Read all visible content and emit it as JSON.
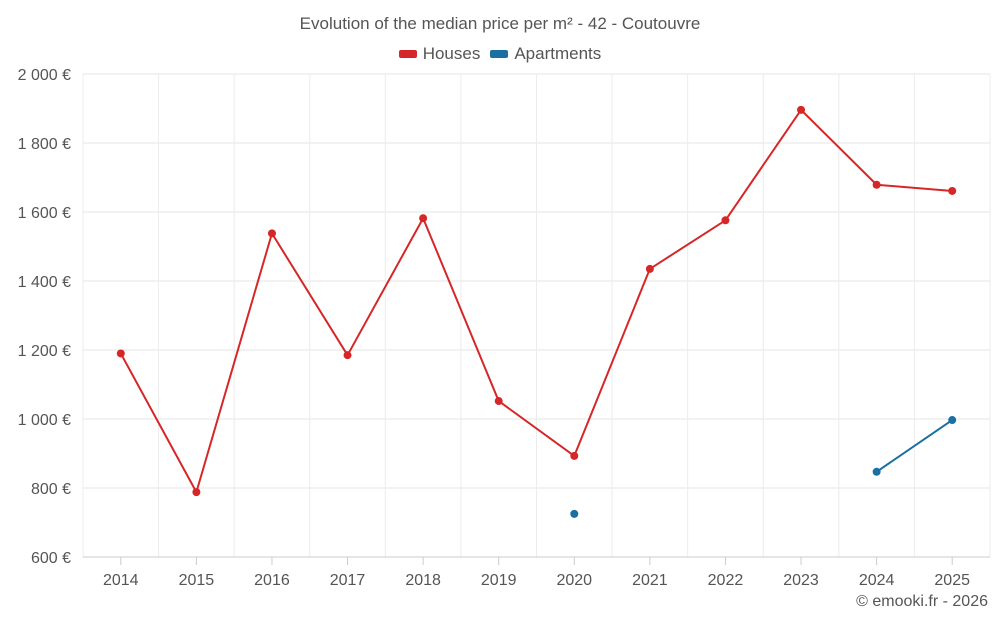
{
  "chart_data": {
    "type": "line",
    "title": "Evolution of the median price per m² - 42 - Coutouvre",
    "categories": [
      "2014",
      "2015",
      "2016",
      "2017",
      "2018",
      "2019",
      "2020",
      "2021",
      "2022",
      "2023",
      "2024",
      "2025"
    ],
    "y_ticks": [
      600,
      800,
      1000,
      1200,
      1400,
      1600,
      1800,
      2000
    ],
    "y_tick_labels": [
      "600 €",
      "800 €",
      "1 000 €",
      "1 200 €",
      "1 400 €",
      "1 600 €",
      "1 800 €",
      "2 000 €"
    ],
    "ylim": [
      600,
      2000
    ],
    "grid": true,
    "legend_position": "top-center",
    "series": [
      {
        "name": "Houses",
        "color": "#d62728",
        "values": [
          1190,
          788,
          1538,
          1185,
          1582,
          1052,
          893,
          1435,
          1576,
          1896,
          1679,
          1661
        ]
      },
      {
        "name": "Apartments",
        "color": "#1a6fa3",
        "values": [
          null,
          null,
          null,
          null,
          null,
          null,
          725,
          null,
          null,
          null,
          847,
          997
        ]
      }
    ]
  },
  "credit": "© emooki.fr - 2026"
}
